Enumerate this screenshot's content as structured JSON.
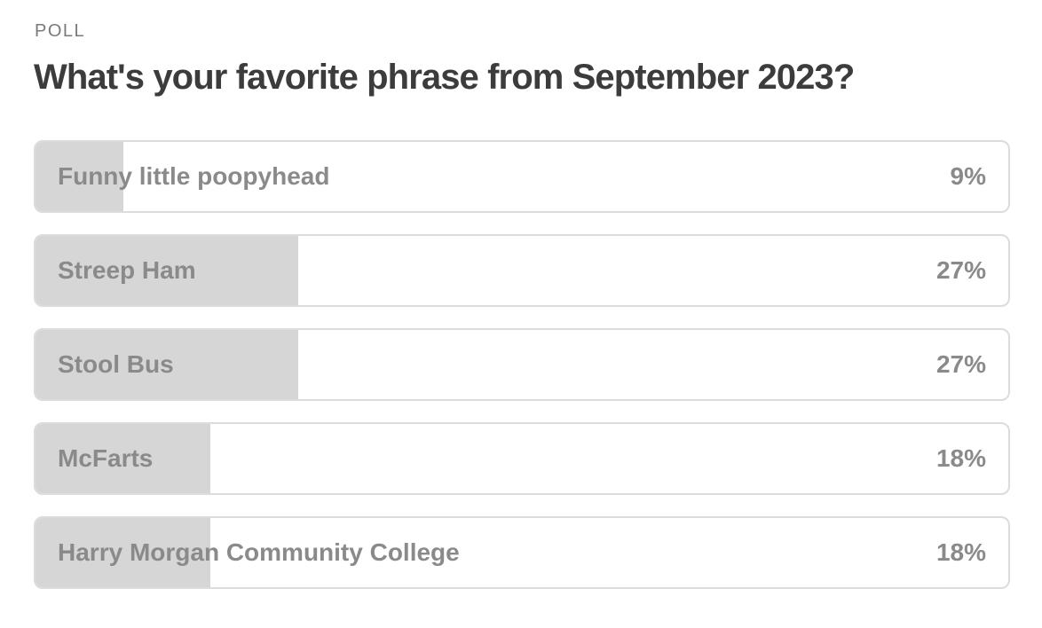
{
  "poll": {
    "label": "POLL",
    "question": "What's your favorite phrase from September 2023?",
    "options": [
      {
        "label": "Funny little poopyhead",
        "percent_text": "9%",
        "share": 0.09
      },
      {
        "label": "Streep Ham",
        "percent_text": "27%",
        "share": 0.27
      },
      {
        "label": "Stool Bus",
        "percent_text": "27%",
        "share": 0.27
      },
      {
        "label": "McFarts",
        "percent_text": "18%",
        "share": 0.18
      },
      {
        "label": "Harry Morgan Community College",
        "percent_text": "18%",
        "share": 0.18
      }
    ]
  },
  "colors": {
    "fill": "#d6d6d6",
    "border": "#dcdcdc",
    "option_text": "#8a8a8a",
    "question_text": "#3c3c3c",
    "label_text": "#7a7a7a"
  }
}
